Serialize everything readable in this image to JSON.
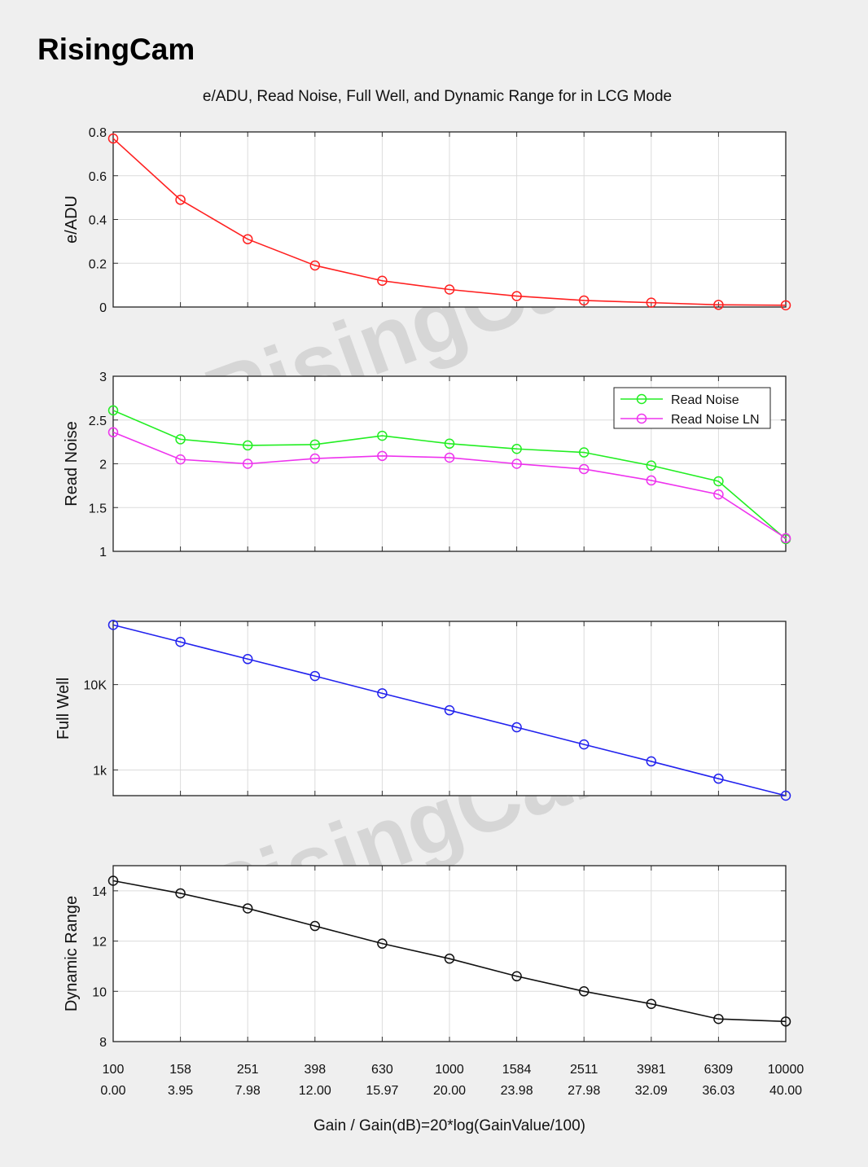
{
  "brand": "RisingCam",
  "watermark": "RisingCam",
  "title": "e/ADU, Read Noise, Full Well, and Dynamic Range for in LCG Mode",
  "xlabel": "Gain / Gain(dB)=20*log(GainValue/100)",
  "x_tick_labels": [
    "100",
    "158",
    "251",
    "398",
    "630",
    "1000",
    "1584",
    "2511",
    "3981",
    "6309",
    "10000"
  ],
  "x_tick_labels_db": [
    "0.00",
    "3.95",
    "7.98",
    "12.00",
    "15.97",
    "20.00",
    "23.98",
    "27.98",
    "32.09",
    "36.03",
    "40.00"
  ],
  "chart_data": [
    {
      "type": "line",
      "ylabel": "e/ADU",
      "ylim": [
        0,
        0.8
      ],
      "yscale": "linear",
      "yticks": [
        0,
        0.2,
        0.4,
        0.6,
        0.8
      ],
      "ytick_labels": [
        "0",
        "0.2",
        "0.4",
        "0.6",
        "0.8"
      ],
      "grid": true,
      "series": [
        {
          "color": "#ff2020",
          "values": [
            0.77,
            0.49,
            0.31,
            0.19,
            0.12,
            0.08,
            0.05,
            0.03,
            0.02,
            0.01,
            0.008
          ]
        }
      ]
    },
    {
      "type": "line",
      "ylabel": "Read Noise",
      "ylim": [
        1,
        3
      ],
      "yscale": "linear",
      "yticks": [
        1,
        1.5,
        2,
        2.5,
        3
      ],
      "ytick_labels": [
        "1",
        "1.5",
        "2",
        "2.5",
        "3"
      ],
      "grid": true,
      "legend": "top-right",
      "series": [
        {
          "name": "Read Noise",
          "color": "#22ee22",
          "values": [
            2.61,
            2.28,
            2.21,
            2.22,
            2.32,
            2.23,
            2.17,
            2.13,
            1.98,
            1.8,
            1.14
          ]
        },
        {
          "name": "Read Noise LN",
          "color": "#ee33ee",
          "values": [
            2.36,
            2.05,
            2.0,
            2.06,
            2.09,
            2.07,
            2.0,
            1.94,
            1.81,
            1.65,
            1.15
          ]
        }
      ]
    },
    {
      "type": "line",
      "ylabel": "Full Well",
      "ylim": [
        500,
        55000
      ],
      "yscale": "log",
      "yticks": [
        1000,
        10000
      ],
      "ytick_labels": [
        "1k",
        "10K"
      ],
      "grid": true,
      "series": [
        {
          "color": "#2222ee",
          "values": [
            50000,
            31600,
            19900,
            12600,
            7900,
            5000,
            3160,
            1990,
            1260,
            790,
            500
          ]
        }
      ]
    },
    {
      "type": "line",
      "ylabel": "Dynamic Range",
      "ylim": [
        8,
        15
      ],
      "yscale": "linear",
      "yticks": [
        8,
        10,
        12,
        14
      ],
      "ytick_labels": [
        "8",
        "10",
        "12",
        "14"
      ],
      "grid": true,
      "series": [
        {
          "color": "#111111",
          "values": [
            14.4,
            13.9,
            13.3,
            12.6,
            11.9,
            11.3,
            10.6,
            10.0,
            9.5,
            8.9,
            8.8
          ]
        }
      ]
    }
  ]
}
